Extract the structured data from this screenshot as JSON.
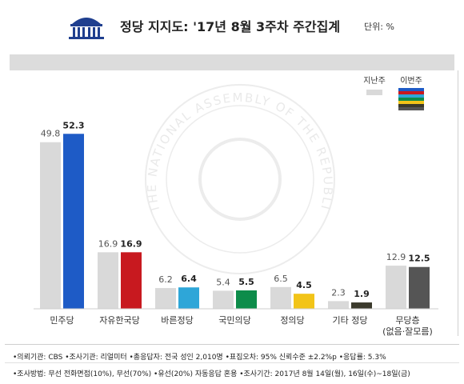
{
  "header": {
    "title": "정당 지지도: '17년 8월 3주차 주간집계",
    "unit": "단위: %"
  },
  "colors": {
    "previous_bar": "#d9d9d9",
    "current_default": "#3c3c3c",
    "democratic": "#1e5bc6",
    "liberty_korea": "#c8191f",
    "bareun": "#2ea6d8",
    "peoples": "#0d8c4a",
    "justice": "#f2c418",
    "other": "#3b3a2c",
    "none": "#555555"
  },
  "watermark_text": "THE NATIONAL ASSEMBLY OF THE REPUBLIC OF KOREA",
  "chart_data": {
    "type": "bar",
    "categories": [
      "민주당",
      "자유한국당",
      "바른정당",
      "국민의당",
      "정의당",
      "기타 정당",
      "무당층\n(없음·잘모름)"
    ],
    "category_lines": [
      [
        "민주당"
      ],
      [
        "자유한국당"
      ],
      [
        "바른정당"
      ],
      [
        "국민의당"
      ],
      [
        "정의당"
      ],
      [
        "기타 정당"
      ],
      [
        "무당층",
        "(없음·잘모름)"
      ]
    ],
    "series": [
      {
        "name": "지난주",
        "values": [
          49.8,
          16.9,
          6.2,
          5.4,
          6.5,
          2.3,
          12.9
        ]
      },
      {
        "name": "이번주",
        "values": [
          52.3,
          16.9,
          6.4,
          5.5,
          4.5,
          1.9,
          12.5
        ]
      }
    ],
    "value_labels_prev": [
      "49.8",
      "16.9",
      "6.2",
      "5.4",
      "6.5",
      "2.3",
      "12.9"
    ],
    "value_labels_curr": [
      "52.3",
      "16.9",
      "6.4",
      "5.5",
      "4.5",
      "1.9",
      "12.5"
    ],
    "current_colors": [
      "#1e5bc6",
      "#c8191f",
      "#2ea6d8",
      "#0d8c4a",
      "#f2c418",
      "#3b3a2c",
      "#555555"
    ],
    "legend_position": "top-right",
    "grid": false,
    "ylim": [
      0,
      55
    ]
  },
  "legend": {
    "prev_label": "지난주",
    "curr_label": "이번주"
  },
  "footer": {
    "line1": "•의뢰기관: CBS  •조사기관: 리얼미터 •총응답자: 전국 성인 2,010명  •표집오차: 95% 신뢰수준 ±2.2%p •응답률: 5.3%",
    "line2": "•조사방법: 무선 전화면접(10%), 무선(70%) •유선(20%) 자동응답 혼용  •조사기간: 2017년 8월 14일(월), 16일(수)~18일(금)"
  }
}
